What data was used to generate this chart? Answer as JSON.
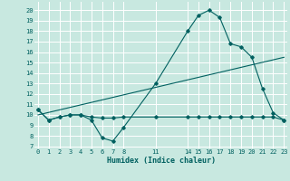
{
  "xlabel": "Humidex (Indice chaleur)",
  "bg_color": "#c8e8e0",
  "grid_color": "#ffffff",
  "line_color": "#006060",
  "line1_x": [
    0,
    1,
    2,
    3,
    4,
    5,
    6,
    7,
    8,
    11,
    14,
    15,
    16,
    17,
    18,
    19,
    20,
    21,
    22,
    23
  ],
  "line1_y": [
    10.5,
    9.5,
    9.8,
    10.0,
    10.0,
    9.5,
    7.8,
    7.5,
    8.8,
    13.0,
    18.0,
    19.5,
    20.0,
    19.3,
    16.8,
    16.5,
    15.5,
    12.5,
    10.2,
    9.5
  ],
  "line2_x": [
    0,
    1,
    2,
    3,
    4,
    5,
    6,
    7,
    8,
    11,
    14,
    15,
    16,
    17,
    18,
    19,
    20,
    21,
    22,
    23
  ],
  "line2_y": [
    10.5,
    9.5,
    9.8,
    10.0,
    10.0,
    9.8,
    9.7,
    9.7,
    9.8,
    9.8,
    9.8,
    9.8,
    9.8,
    9.8,
    9.8,
    9.8,
    9.8,
    9.8,
    9.8,
    9.5
  ],
  "line3_x": [
    0,
    23
  ],
  "line3_y": [
    10.0,
    15.5
  ],
  "xticks": [
    0,
    1,
    2,
    3,
    4,
    5,
    6,
    7,
    8,
    11,
    14,
    15,
    16,
    17,
    18,
    19,
    20,
    21,
    22,
    23
  ],
  "yticks": [
    7,
    8,
    9,
    10,
    11,
    12,
    13,
    14,
    15,
    16,
    17,
    18,
    19,
    20
  ],
  "ylim": [
    6.8,
    20.8
  ],
  "xlim": [
    -0.3,
    23.3
  ]
}
